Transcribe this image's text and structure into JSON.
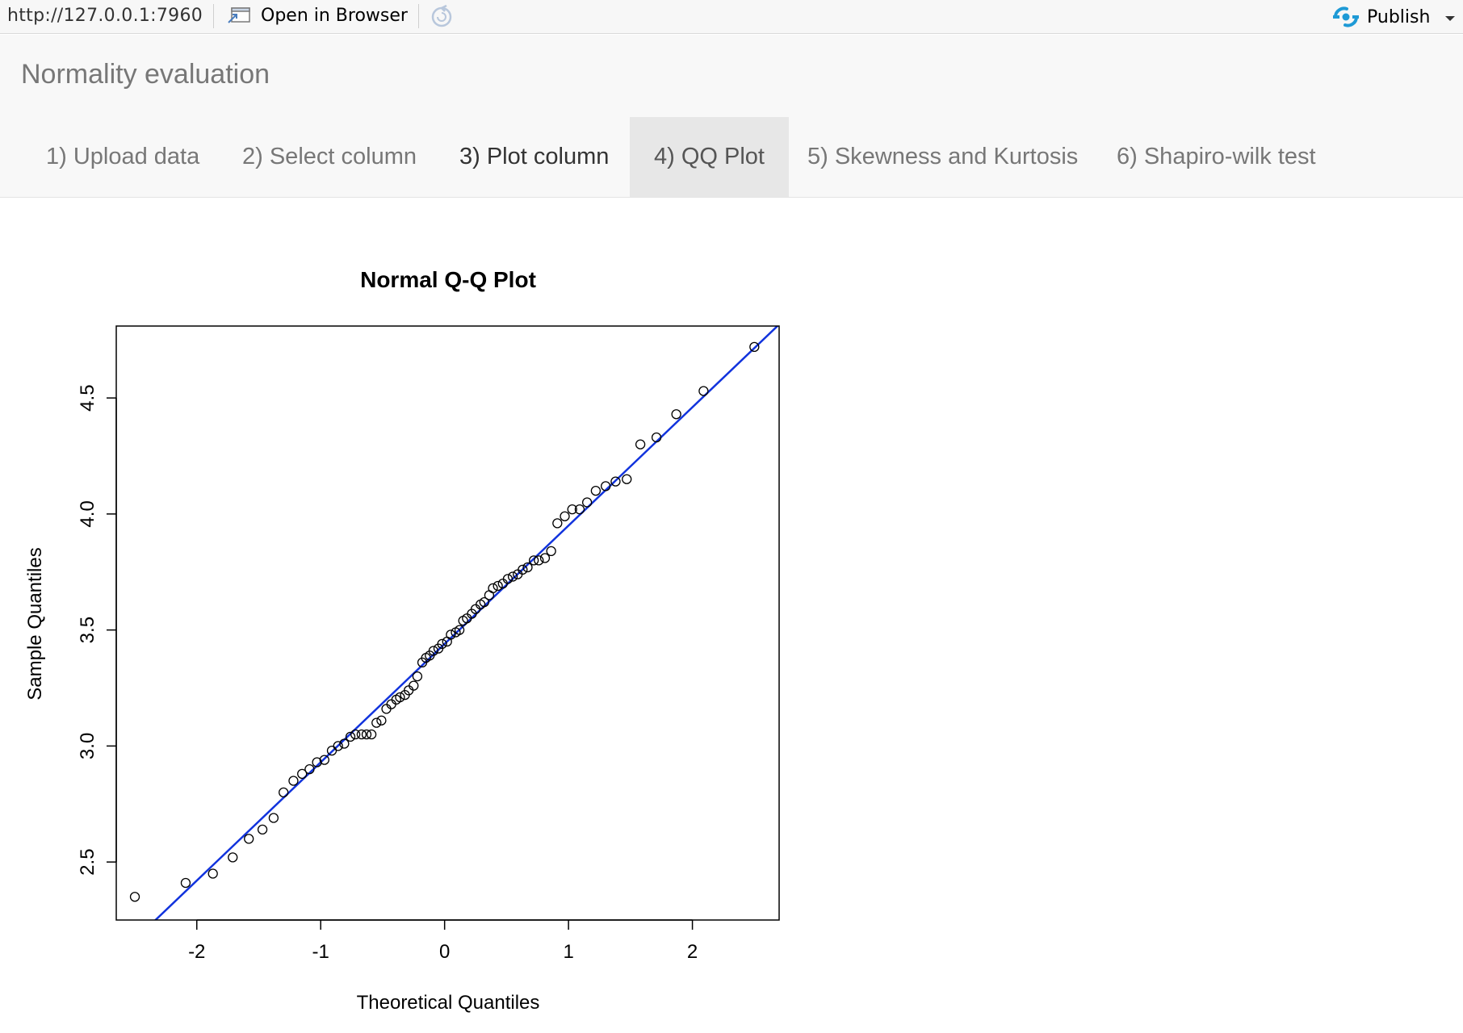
{
  "toolbar": {
    "url": "http://127.0.0.1:7960",
    "open_in_browser": "Open in Browser",
    "publish": "Publish",
    "icons": {
      "open": "open-in-browser-icon",
      "refresh": "refresh-icon",
      "publish": "publish-icon",
      "caret": "caret-down-icon"
    },
    "publish_icon_color": "#1e9ad6"
  },
  "app": {
    "title": "Normality evaluation"
  },
  "tabs": [
    {
      "label": "1) Upload data"
    },
    {
      "label": "2) Select column"
    },
    {
      "label": "3) Plot column"
    },
    {
      "label": "4) QQ Plot",
      "active": true
    },
    {
      "label": "5) Skewness and Kurtosis"
    },
    {
      "label": "6) Shapiro-wilk test"
    }
  ],
  "chart_data": {
    "type": "scatter",
    "title": "Normal Q-Q Plot",
    "xlabel": "Theoretical Quantiles",
    "ylabel": "Sample Quantiles",
    "xlim": [
      -2.65,
      2.7
    ],
    "ylim": [
      2.25,
      4.81
    ],
    "xticks": [
      -2,
      -1,
      0,
      1,
      2
    ],
    "xtick_labels": [
      "-2",
      "-1",
      "0",
      "1",
      "2"
    ],
    "yticks": [
      2.5,
      3.0,
      3.5,
      4.0,
      4.5
    ],
    "ytick_labels": [
      "2.5",
      "3.0",
      "3.5",
      "4.0",
      "4.5"
    ],
    "reference_line": {
      "color": "#1133dd",
      "intercept": 3.44,
      "slope": 0.51
    },
    "points": {
      "x": [
        -2.5,
        -2.09,
        -1.87,
        -1.71,
        -1.58,
        -1.47,
        -1.38,
        -1.3,
        -1.22,
        -1.15,
        -1.09,
        -1.03,
        -0.97,
        -0.91,
        -0.86,
        -0.81,
        -0.76,
        -0.72,
        -0.67,
        -0.63,
        -0.59,
        -0.55,
        -0.51,
        -0.47,
        -0.43,
        -0.39,
        -0.36,
        -0.32,
        -0.29,
        -0.25,
        -0.22,
        -0.18,
        -0.15,
        -0.12,
        -0.09,
        -0.05,
        -0.02,
        0.02,
        0.05,
        0.09,
        0.12,
        0.15,
        0.18,
        0.22,
        0.25,
        0.29,
        0.32,
        0.36,
        0.39,
        0.43,
        0.47,
        0.51,
        0.55,
        0.59,
        0.63,
        0.67,
        0.72,
        0.76,
        0.81,
        0.86,
        0.91,
        0.97,
        1.03,
        1.09,
        1.15,
        1.22,
        1.3,
        1.38,
        1.47,
        1.58,
        1.71,
        1.87,
        2.09,
        2.5
      ],
      "y": [
        2.35,
        2.41,
        2.45,
        2.52,
        2.6,
        2.64,
        2.69,
        2.8,
        2.85,
        2.88,
        2.9,
        2.93,
        2.94,
        2.98,
        3.0,
        3.01,
        3.04,
        3.05,
        3.05,
        3.05,
        3.05,
        3.1,
        3.11,
        3.16,
        3.18,
        3.2,
        3.21,
        3.22,
        3.24,
        3.26,
        3.3,
        3.36,
        3.38,
        3.39,
        3.41,
        3.42,
        3.44,
        3.45,
        3.48,
        3.49,
        3.5,
        3.54,
        3.55,
        3.57,
        3.59,
        3.61,
        3.62,
        3.65,
        3.68,
        3.69,
        3.7,
        3.72,
        3.73,
        3.74,
        3.76,
        3.77,
        3.8,
        3.8,
        3.81,
        3.84,
        3.96,
        3.99,
        4.02,
        4.02,
        4.05,
        4.1,
        4.12,
        4.14,
        4.15,
        4.3,
        4.33,
        4.43,
        4.53,
        4.72
      ]
    }
  }
}
